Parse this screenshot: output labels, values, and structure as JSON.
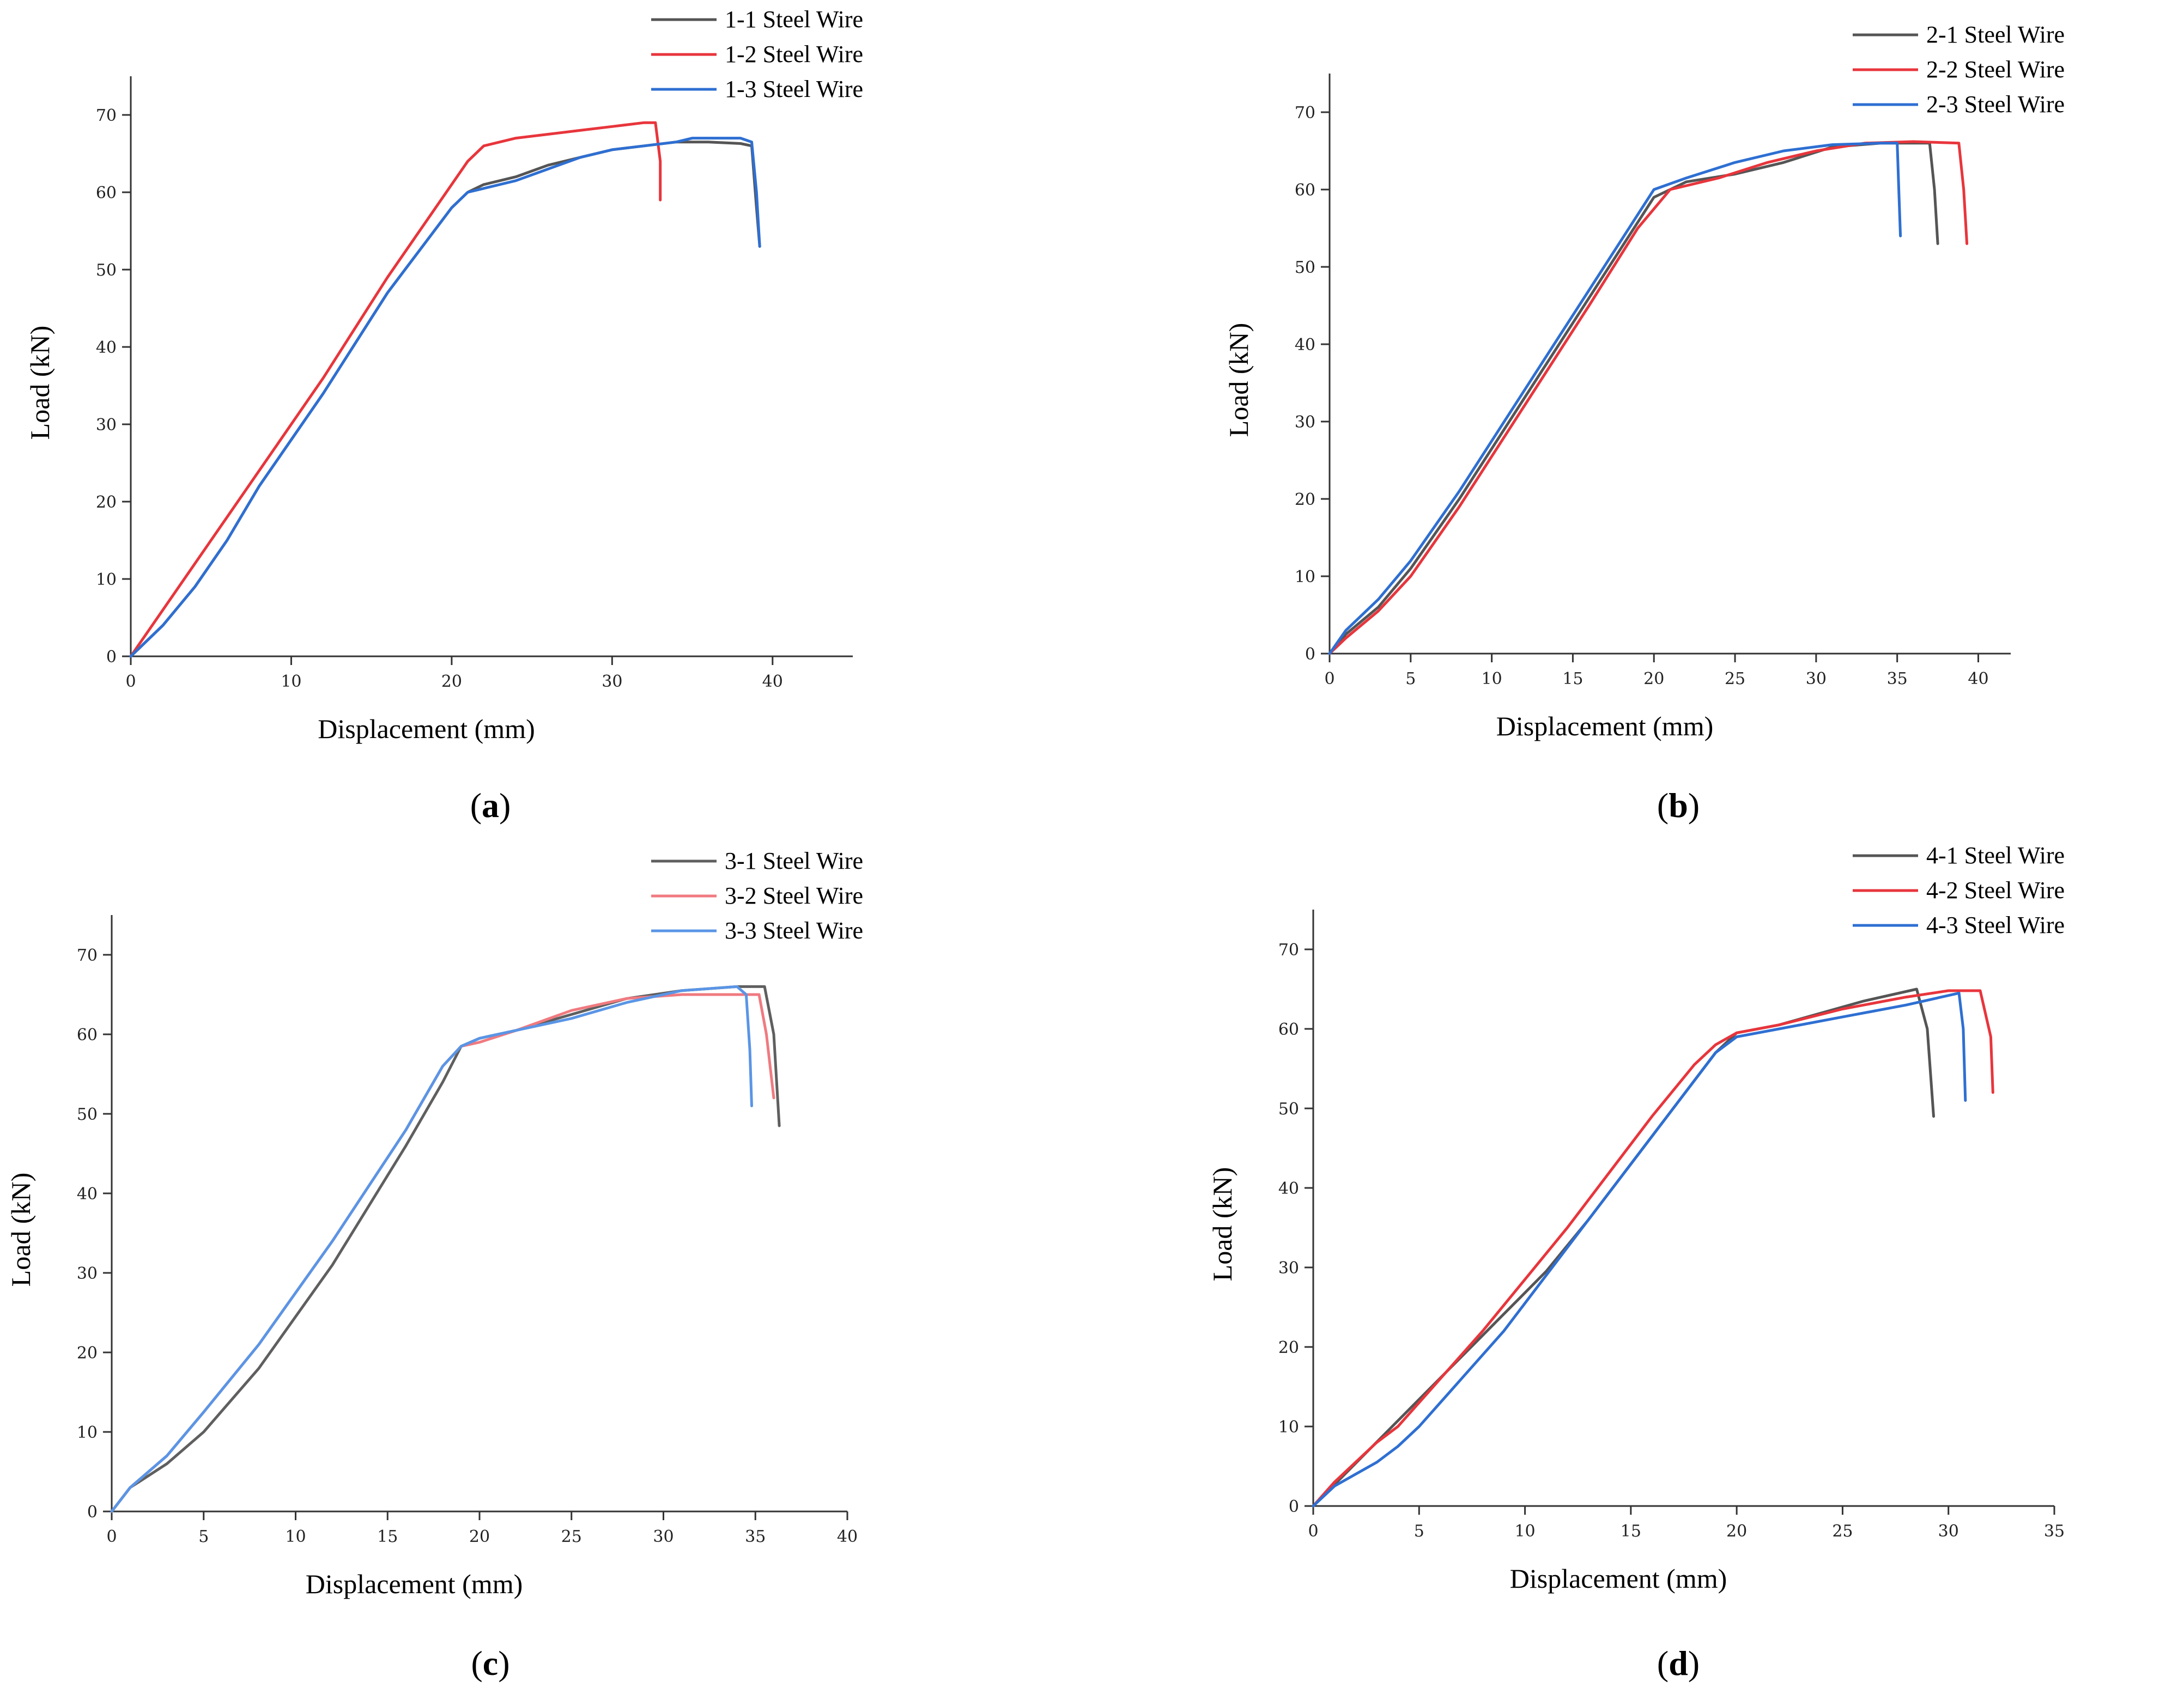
{
  "chart_data": [
    {
      "panel": "(a)",
      "type": "line",
      "caption_letter": "a",
      "xlabel": "Displacement (mm)",
      "ylabel": "Load (kN)",
      "xlim": [
        0,
        45
      ],
      "ylim": [
        0,
        75
      ],
      "xticks": [
        0,
        10,
        20,
        30,
        40
      ],
      "yticks": [
        0,
        10,
        20,
        30,
        40,
        50,
        60,
        70
      ],
      "legend_position": "top-right",
      "series": [
        {
          "name": "1-1 Steel Wire",
          "color": "#555555",
          "points": [
            [
              0,
              0
            ],
            [
              2,
              4
            ],
            [
              4,
              9
            ],
            [
              6,
              15
            ],
            [
              8,
              22
            ],
            [
              12,
              34
            ],
            [
              16,
              47
            ],
            [
              20,
              58
            ],
            [
              21,
              60
            ],
            [
              22,
              61
            ],
            [
              24,
              62
            ],
            [
              26,
              63.5
            ],
            [
              28,
              64.5
            ],
            [
              30,
              65.5
            ],
            [
              32,
              66
            ],
            [
              34,
              66.5
            ],
            [
              36,
              66.5
            ],
            [
              38,
              66.3
            ],
            [
              38.7,
              66
            ],
            [
              39,
              58
            ],
            [
              39.2,
              53
            ]
          ]
        },
        {
          "name": "1-2 Steel Wire",
          "color": "#e8353c",
          "points": [
            [
              0,
              0
            ],
            [
              2,
              6
            ],
            [
              4,
              12
            ],
            [
              6,
              18
            ],
            [
              8,
              24
            ],
            [
              12,
              36
            ],
            [
              16,
              49
            ],
            [
              19,
              58
            ],
            [
              21,
              64
            ],
            [
              22,
              66
            ],
            [
              24,
              67
            ],
            [
              26,
              67.5
            ],
            [
              28,
              68
            ],
            [
              30,
              68.5
            ],
            [
              32,
              69
            ],
            [
              32.7,
              69
            ],
            [
              33,
              64
            ],
            [
              33,
              59
            ]
          ]
        },
        {
          "name": "1-3 Steel Wire",
          "color": "#2e6fd2",
          "points": [
            [
              0,
              0
            ],
            [
              2,
              4
            ],
            [
              4,
              9
            ],
            [
              6,
              15
            ],
            [
              8,
              22
            ],
            [
              12,
              34
            ],
            [
              16,
              47
            ],
            [
              20,
              58
            ],
            [
              21,
              60
            ],
            [
              22,
              60.5
            ],
            [
              24,
              61.5
            ],
            [
              26,
              63
            ],
            [
              28,
              64.5
            ],
            [
              30,
              65.5
            ],
            [
              32,
              66
            ],
            [
              34,
              66.5
            ],
            [
              35,
              67
            ],
            [
              38,
              67
            ],
            [
              38.7,
              66.5
            ],
            [
              39,
              60
            ],
            [
              39.2,
              53
            ]
          ]
        }
      ]
    },
    {
      "panel": "(b)",
      "type": "line",
      "caption_letter": "b",
      "xlabel": "Displacement (mm)",
      "ylabel": "Load (kN)",
      "xlim": [
        0,
        42
      ],
      "ylim": [
        0,
        75
      ],
      "xticks": [
        0,
        5,
        10,
        15,
        20,
        25,
        30,
        35,
        40
      ],
      "yticks": [
        0,
        10,
        20,
        30,
        40,
        50,
        60,
        70
      ],
      "legend_position": "top-right",
      "series": [
        {
          "name": "2-1 Steel Wire",
          "color": "#555555",
          "points": [
            [
              0,
              0
            ],
            [
              1,
              2.5
            ],
            [
              3,
              6
            ],
            [
              5,
              11
            ],
            [
              8,
              20
            ],
            [
              12,
              33
            ],
            [
              16,
              46
            ],
            [
              20,
              59
            ],
            [
              22,
              61
            ],
            [
              25,
              62
            ],
            [
              28,
              63.5
            ],
            [
              31,
              65.5
            ],
            [
              34,
              66
            ],
            [
              37,
              66
            ],
            [
              37.3,
              60
            ],
            [
              37.5,
              53
            ]
          ]
        },
        {
          "name": "2-2 Steel Wire",
          "color": "#e8353c",
          "points": [
            [
              0,
              0
            ],
            [
              1,
              2
            ],
            [
              3,
              5.5
            ],
            [
              5,
              10
            ],
            [
              8,
              19
            ],
            [
              12,
              32
            ],
            [
              16,
              45
            ],
            [
              19,
              55
            ],
            [
              21,
              60
            ],
            [
              24,
              61.5
            ],
            [
              27,
              63.5
            ],
            [
              30,
              65
            ],
            [
              33,
              66
            ],
            [
              36,
              66.2
            ],
            [
              38.8,
              66
            ],
            [
              39.1,
              60
            ],
            [
              39.3,
              53
            ]
          ]
        },
        {
          "name": "2-3 Steel Wire",
          "color": "#2e6fd2",
          "points": [
            [
              0,
              0
            ],
            [
              1,
              3
            ],
            [
              3,
              7
            ],
            [
              5,
              12
            ],
            [
              8,
              21
            ],
            [
              12,
              34
            ],
            [
              16,
              47
            ],
            [
              20,
              60
            ],
            [
              22,
              61.5
            ],
            [
              25,
              63.5
            ],
            [
              28,
              65
            ],
            [
              31,
              65.8
            ],
            [
              34,
              66
            ],
            [
              35,
              66
            ],
            [
              35.1,
              60
            ],
            [
              35.2,
              54
            ]
          ]
        }
      ]
    },
    {
      "panel": "(c)",
      "type": "line",
      "caption_letter": "c",
      "xlabel": "Displacement (mm)",
      "ylabel": "Load (kN)",
      "xlim": [
        0,
        40
      ],
      "ylim": [
        0,
        75
      ],
      "xticks": [
        0,
        5,
        10,
        15,
        20,
        25,
        30,
        35,
        40
      ],
      "yticks": [
        0,
        10,
        20,
        30,
        40,
        50,
        60,
        70
      ],
      "legend_position": "top-right",
      "series": [
        {
          "name": "3-1 Steel Wire",
          "color": "#5f5f5f",
          "points": [
            [
              0,
              0
            ],
            [
              1,
              3
            ],
            [
              3,
              6
            ],
            [
              5,
              10
            ],
            [
              8,
              18
            ],
            [
              12,
              31
            ],
            [
              16,
              46
            ],
            [
              18,
              54
            ],
            [
              19,
              58.5
            ],
            [
              20,
              59.5
            ],
            [
              22,
              60.5
            ],
            [
              25,
              62.5
            ],
            [
              28,
              64.5
            ],
            [
              31,
              65.5
            ],
            [
              34,
              66
            ],
            [
              35.5,
              66
            ],
            [
              36,
              60
            ],
            [
              36.3,
              48.5
            ]
          ]
        },
        {
          "name": "3-2 Steel Wire",
          "color": "#f07a80",
          "points": [
            [
              0,
              0
            ],
            [
              1,
              3
            ],
            [
              3,
              7
            ],
            [
              5,
              12.5
            ],
            [
              8,
              21
            ],
            [
              12,
              34
            ],
            [
              16,
              48
            ],
            [
              18,
              56
            ],
            [
              19,
              58.5
            ],
            [
              20,
              59
            ],
            [
              22,
              60.5
            ],
            [
              25,
              63
            ],
            [
              28,
              64.5
            ],
            [
              31,
              65
            ],
            [
              34,
              65
            ],
            [
              35.2,
              65
            ],
            [
              35.6,
              60
            ],
            [
              36,
              52
            ]
          ]
        },
        {
          "name": "3-3 Steel Wire",
          "color": "#5a95e6",
          "points": [
            [
              0,
              0
            ],
            [
              1,
              3
            ],
            [
              3,
              7
            ],
            [
              5,
              12.5
            ],
            [
              8,
              21
            ],
            [
              12,
              34
            ],
            [
              16,
              48
            ],
            [
              18,
              56
            ],
            [
              19,
              58.5
            ],
            [
              20,
              59.5
            ],
            [
              22,
              60.5
            ],
            [
              25,
              62
            ],
            [
              28,
              64
            ],
            [
              31,
              65.5
            ],
            [
              34,
              66
            ],
            [
              34.5,
              65
            ],
            [
              34.7,
              58
            ],
            [
              34.8,
              51
            ]
          ]
        }
      ]
    },
    {
      "panel": "(d)",
      "type": "line",
      "caption_letter": "d",
      "xlabel": "Displacement (mm)",
      "ylabel": "Load (kN)",
      "xlim": [
        0,
        35
      ],
      "ylim": [
        0,
        75
      ],
      "xticks": [
        0,
        5,
        10,
        15,
        20,
        25,
        30,
        35
      ],
      "yticks": [
        0,
        10,
        20,
        30,
        40,
        50,
        60,
        70
      ],
      "legend_position": "top-right",
      "series": [
        {
          "name": "4-1 Steel Wire",
          "color": "#555555",
          "points": [
            [
              0,
              0
            ],
            [
              11,
              29.5
            ],
            [
              13,
              36
            ],
            [
              15,
              43
            ],
            [
              17,
              50
            ],
            [
              19,
              57
            ],
            [
              20,
              59.5
            ],
            [
              22,
              60.5
            ],
            [
              24,
              62
            ],
            [
              26,
              63.5
            ],
            [
              28.5,
              65
            ],
            [
              29,
              60
            ],
            [
              29.3,
              49
            ]
          ]
        },
        {
          "name": "4-2 Steel Wire",
          "color": "#e8353c",
          "points": [
            [
              0,
              0
            ],
            [
              1,
              3
            ],
            [
              2,
              5.5
            ],
            [
              3,
              8
            ],
            [
              4,
              10
            ],
            [
              6,
              16
            ],
            [
              8,
              22
            ],
            [
              10,
              28.5
            ],
            [
              12,
              35
            ],
            [
              14,
              42
            ],
            [
              16,
              49
            ],
            [
              18,
              55.5
            ],
            [
              19,
              58
            ],
            [
              20,
              59.5
            ],
            [
              22,
              60.5
            ],
            [
              25,
              62.5
            ],
            [
              28,
              64
            ],
            [
              30,
              64.8
            ],
            [
              31.5,
              64.8
            ],
            [
              32,
              59
            ],
            [
              32.1,
              52
            ]
          ]
        },
        {
          "name": "4-3 Steel Wire",
          "color": "#2e6fd2",
          "points": [
            [
              0,
              0
            ],
            [
              1,
              2.5
            ],
            [
              2,
              4
            ],
            [
              3,
              5.5
            ],
            [
              4,
              7.5
            ],
            [
              5,
              10
            ],
            [
              7,
              16
            ],
            [
              9,
              22
            ],
            [
              11,
              29
            ],
            [
              13,
              36
            ],
            [
              15,
              43
            ],
            [
              17,
              50
            ],
            [
              19,
              57
            ],
            [
              20,
              59
            ],
            [
              22,
              60
            ],
            [
              25,
              61.5
            ],
            [
              28,
              63
            ],
            [
              30.5,
              64.5
            ],
            [
              30.7,
              60
            ],
            [
              30.8,
              51
            ]
          ]
        }
      ]
    }
  ]
}
